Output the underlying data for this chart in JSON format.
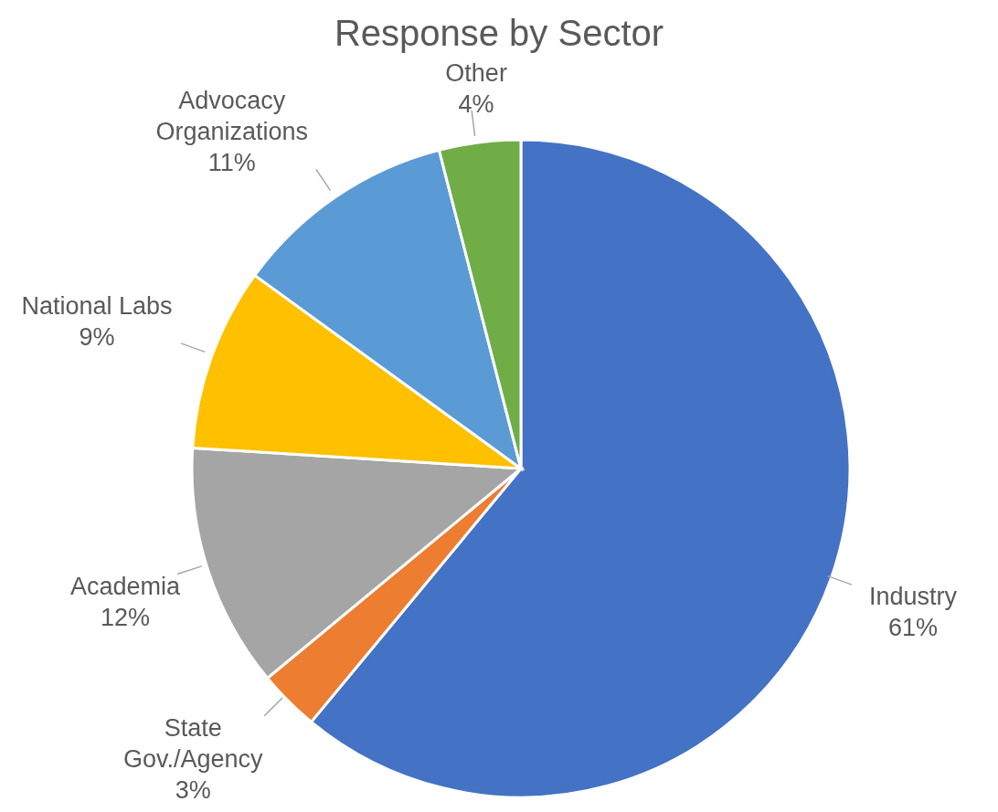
{
  "chart_data": {
    "type": "pie",
    "title": "Response by Sector",
    "categories": [
      "Industry",
      "State Gov./Agency",
      "Academia",
      "National Labs",
      "Advocacy Organizations",
      "Other"
    ],
    "values": [
      61,
      3,
      12,
      9,
      11,
      4
    ],
    "value_labels": [
      "61%",
      "3%",
      "12%",
      "9%",
      "11%",
      "4%"
    ],
    "colors": [
      "#4472c4",
      "#ed7d31",
      "#a5a5a5",
      "#ffc000",
      "#5b9bd5",
      "#70ad47"
    ],
    "legend": false
  }
}
